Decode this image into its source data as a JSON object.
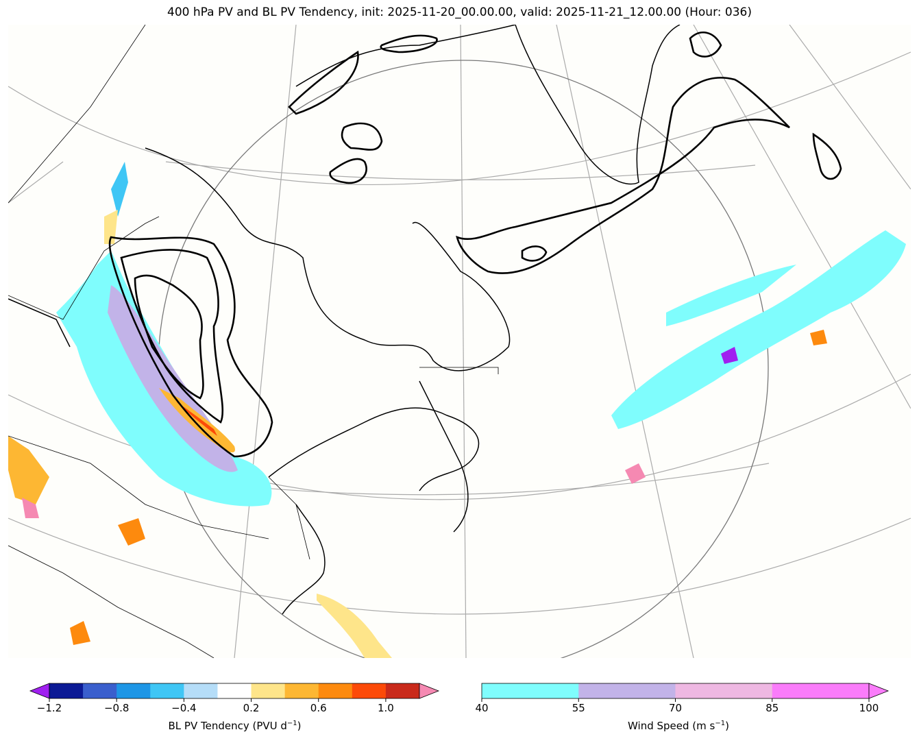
{
  "title": "400 hPa PV and BL PV Tendency, init: 2025-11-20_00.00.00, valid: 2025-11-21_12.00.00 (Hour: 036)",
  "colors": {
    "ocean_bg": "#fefefb",
    "pv_contour": "#000000",
    "coastline": "#000000",
    "graticule": "#aaaaaa"
  },
  "colorbar_pv": {
    "label": "BL PV Tendency (PVU d",
    "label_sup": "−1",
    "label_end": ")",
    "tick_labels": [
      "−1.2",
      "−0.8",
      "−0.4",
      "0.2",
      "0.6",
      "1.0"
    ],
    "colors": [
      "#0c1a95",
      "#3a5fcd",
      "#1e96e6",
      "#3fc6f5",
      "#b5ddf8",
      "#ffffff",
      "#fee58a",
      "#fdb733",
      "#fd8a0e",
      "#fc4a08",
      "#c92a1b"
    ],
    "under_color": "#a020f0",
    "over_color": "#f589b2",
    "min": -1.2,
    "max": 1.2
  },
  "colorbar_wind": {
    "label": "Wind Speed (m s",
    "label_sup": "−1",
    "label_end": ")",
    "tick_labels": [
      "40",
      "55",
      "70",
      "85",
      "100"
    ],
    "colors": [
      "#7ffdfd",
      "#c2b3e8",
      "#eeb8e2",
      "#fa7cfa"
    ],
    "over_color": "#fa7cfa",
    "min": 40,
    "max": 100
  }
}
